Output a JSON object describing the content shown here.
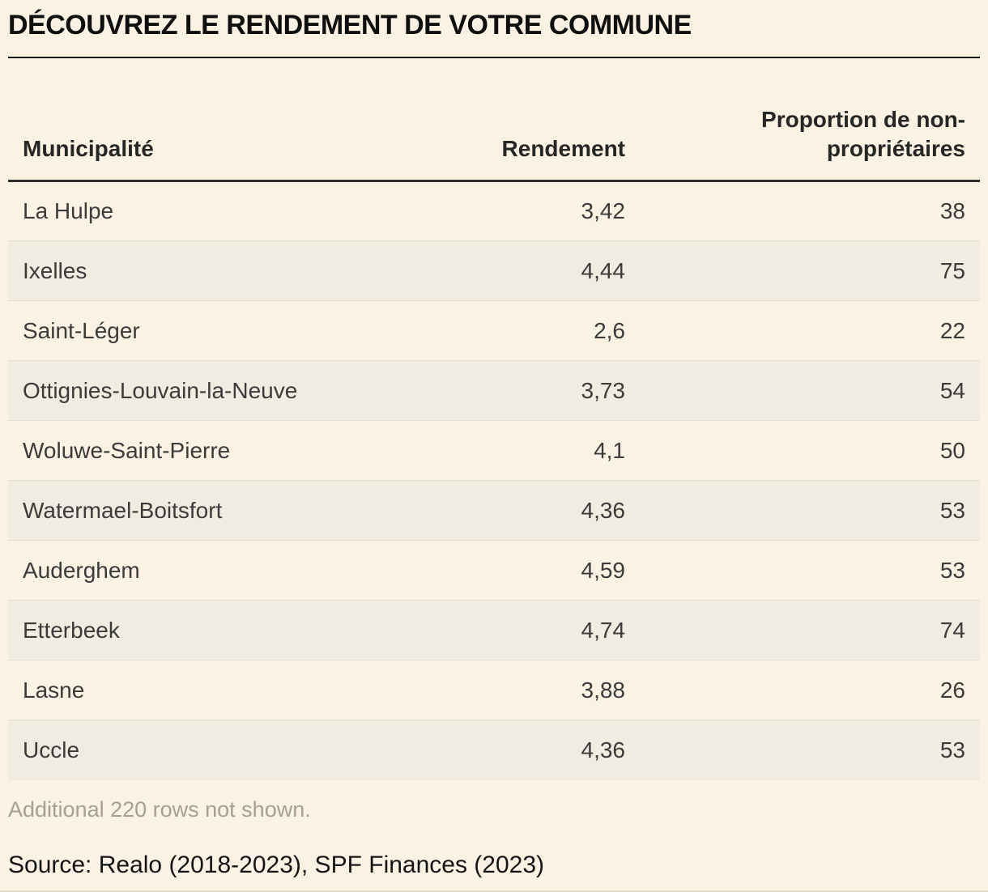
{
  "title": "DÉCOUVREZ LE RENDEMENT DE VOTRE COMMUNE",
  "chart_data": {
    "type": "table",
    "title": "DÉCOUVREZ LE RENDEMENT DE VOTRE COMMUNE",
    "columns": [
      {
        "label": "Municipalité",
        "align": "left"
      },
      {
        "label": "Rendement",
        "align": "right"
      },
      {
        "label": "Proportion de non-\npropriétaires",
        "align": "right"
      }
    ],
    "rows": [
      {
        "municipality": "La Hulpe",
        "rendement": "3,42",
        "proportion": "38",
        "shaded": false
      },
      {
        "municipality": "Ixelles",
        "rendement": "4,44",
        "proportion": "75",
        "shaded": true
      },
      {
        "municipality": "Saint-Léger",
        "rendement": "2,6",
        "proportion": "22",
        "shaded": false
      },
      {
        "municipality": "Ottignies-Louvain-la-Neuve",
        "rendement": "3,73",
        "proportion": "54",
        "shaded": true
      },
      {
        "municipality": "Woluwe-Saint-Pierre",
        "rendement": "4,1",
        "proportion": "50",
        "shaded": false
      },
      {
        "municipality": "Watermael-Boitsfort",
        "rendement": "4,36",
        "proportion": "53",
        "shaded": true
      },
      {
        "municipality": "Auderghem",
        "rendement": "4,59",
        "proportion": "53",
        "shaded": false
      },
      {
        "municipality": "Etterbeek",
        "rendement": "4,74",
        "proportion": "74",
        "shaded": true
      },
      {
        "municipality": "Lasne",
        "rendement": "3,88",
        "proportion": "26",
        "shaded": false
      },
      {
        "municipality": "Uccle",
        "rendement": "4,36",
        "proportion": "53",
        "shaded": true
      }
    ],
    "note": "Additional 220 rows not shown.",
    "source": "Source: Realo (2018-2023), SPF Finances (2023)",
    "layout_hints": {
      "row_striping": "even rows shaded",
      "column_alignment": [
        "left",
        "right",
        "right"
      ]
    }
  },
  "colors": {
    "background": "#fbf2e3",
    "row_shade": "#f1ece2",
    "row_divider": "#e2dccf",
    "header_rule": "#2e2e2e",
    "title_rule": "#161616",
    "body_text": "#3b3b3b",
    "note_text": "#a5a096"
  }
}
